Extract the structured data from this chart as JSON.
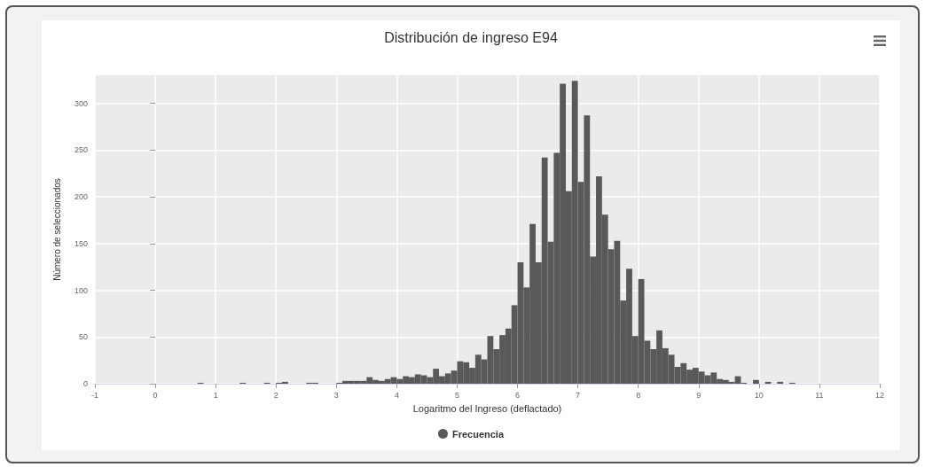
{
  "chart_data": {
    "type": "histogram",
    "title": "Distribución de ingreso E94",
    "xlabel": "Logaritmo del Ingreso (deflactado)",
    "ylabel": "Número de seleccionados",
    "bins": [
      0.7,
      0.8,
      0.9,
      1.0,
      1.1,
      1.2,
      1.3,
      1.4,
      1.5,
      1.6,
      1.7,
      1.8,
      1.9,
      2.0,
      2.1,
      2.2,
      2.3,
      2.4,
      2.5,
      2.6,
      2.7,
      2.8,
      2.9,
      3.0,
      3.1,
      3.2,
      3.3,
      3.4,
      3.5,
      3.6,
      3.7,
      3.8,
      3.9,
      4.0,
      4.1,
      4.2,
      4.3,
      4.4,
      4.5,
      4.6,
      4.7,
      4.8,
      4.9,
      5.0,
      5.1,
      5.2,
      5.3,
      5.4,
      5.5,
      5.6,
      5.7,
      5.8,
      5.9,
      6.0,
      6.1,
      6.2,
      6.3,
      6.4,
      6.5,
      6.6,
      6.7,
      6.8,
      6.9,
      7.0,
      7.1,
      7.2,
      7.3,
      7.4,
      7.5,
      7.6,
      7.7,
      7.8,
      7.9,
      8.0,
      8.1,
      8.2,
      8.3,
      8.4,
      8.5,
      8.6,
      8.7,
      8.8,
      8.9,
      9.0,
      9.1,
      9.2,
      9.3,
      9.4,
      9.5,
      9.6,
      9.7,
      9.8,
      9.9,
      10.0,
      10.1,
      10.2,
      10.3,
      10.4,
      10.5,
      10.6
    ],
    "series": [
      {
        "name": "Frecuencia",
        "color": "#595959",
        "values": [
          1,
          0,
          0,
          0,
          0,
          0,
          0,
          1,
          0,
          0,
          0,
          1,
          0,
          1,
          2,
          0,
          0,
          0,
          1,
          1,
          0,
          0,
          0,
          1,
          3,
          3,
          3,
          3,
          7,
          4,
          3,
          5,
          7,
          5,
          8,
          7,
          10,
          9,
          7,
          16,
          8,
          11,
          14,
          24,
          23,
          17,
          31,
          26,
          51,
          37,
          52,
          59,
          84,
          130,
          103,
          171,
          130,
          242,
          152,
          247,
          321,
          206,
          324,
          216,
          287,
          136,
          222,
          181,
          144,
          153,
          89,
          123,
          51,
          112,
          46,
          37,
          57,
          38,
          31,
          18,
          22,
          15,
          17,
          13,
          9,
          12,
          5,
          4,
          2,
          8,
          1,
          0,
          4,
          0,
          2,
          0,
          2,
          0,
          1
        ]
      }
    ],
    "xlim": [
      -1,
      12
    ],
    "xticks": [
      -1,
      0,
      1,
      2,
      3,
      4,
      5,
      6,
      7,
      8,
      9,
      10,
      11,
      12
    ],
    "ylim": [
      0,
      330
    ],
    "yticks": [
      0,
      50,
      100,
      150,
      200,
      250,
      300
    ],
    "grid": true,
    "legend": "bottom"
  }
}
